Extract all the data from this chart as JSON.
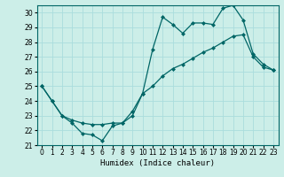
{
  "title": "",
  "xlabel": "Humidex (Indice chaleur)",
  "ylabel": "",
  "bg_color": "#cceee8",
  "grid_color": "#aadddd",
  "line_color": "#006666",
  "xlim": [
    -0.5,
    23.5
  ],
  "ylim": [
    21,
    30.5
  ],
  "yticks": [
    21,
    22,
    23,
    24,
    25,
    26,
    27,
    28,
    29,
    30
  ],
  "xticks": [
    0,
    1,
    2,
    3,
    4,
    5,
    6,
    7,
    8,
    9,
    10,
    11,
    12,
    13,
    14,
    15,
    16,
    17,
    18,
    19,
    20,
    21,
    22,
    23
  ],
  "line1_x": [
    0,
    1,
    2,
    3,
    4,
    5,
    6,
    7,
    8,
    9,
    10,
    11,
    12,
    13,
    14,
    15,
    16,
    17,
    18,
    19,
    20,
    21,
    22,
    23
  ],
  "line1_y": [
    25.0,
    24.0,
    23.0,
    22.5,
    21.8,
    21.7,
    21.3,
    22.3,
    22.5,
    23.3,
    24.5,
    27.5,
    29.7,
    29.2,
    28.6,
    29.3,
    29.3,
    29.2,
    30.3,
    30.5,
    29.5,
    27.2,
    26.5,
    26.1
  ],
  "line2_x": [
    0,
    1,
    2,
    3,
    4,
    5,
    6,
    7,
    8,
    9,
    10,
    11,
    12,
    13,
    14,
    15,
    16,
    17,
    18,
    19,
    20,
    21,
    22,
    23
  ],
  "line2_y": [
    25.0,
    24.0,
    23.0,
    22.7,
    22.5,
    22.4,
    22.4,
    22.5,
    22.5,
    23.0,
    24.5,
    25.0,
    25.7,
    26.2,
    26.5,
    26.9,
    27.3,
    27.6,
    28.0,
    28.4,
    28.5,
    27.0,
    26.3,
    26.1
  ],
  "marker": "D",
  "marker_size": 2,
  "line_width": 0.9,
  "tick_fontsize": 5.5,
  "xlabel_fontsize": 6.5
}
